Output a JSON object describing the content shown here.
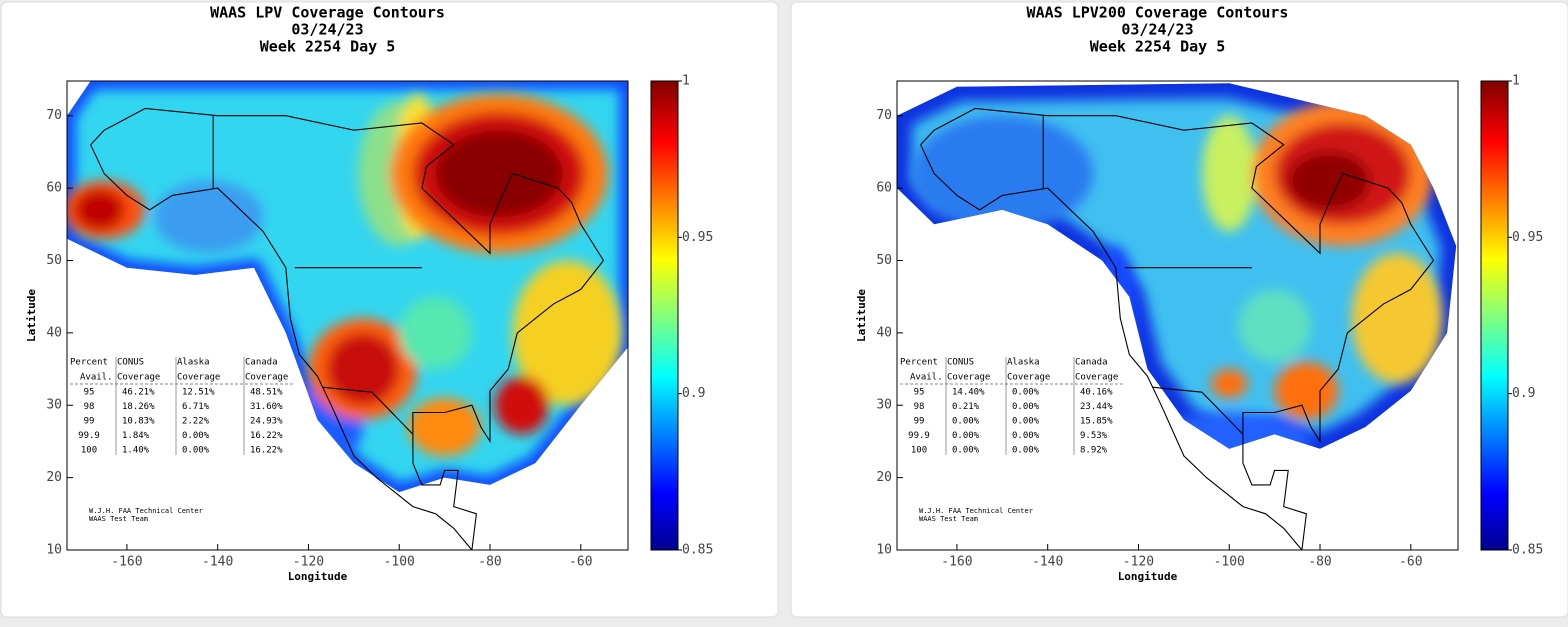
{
  "chart_data": [
    {
      "type": "map",
      "title": "WAAS LPV Coverage Contours",
      "date": "03/24/23",
      "subtitle": "Week 2254 Day 5",
      "xlabel": "Longitude",
      "ylabel": "Latitude",
      "xlim": [
        -173.2,
        -49.6
      ],
      "xticks": [
        -160,
        -140,
        -120,
        -100,
        -80,
        -60
      ],
      "ylim": [
        10,
        74.8
      ],
      "yticks": [
        10,
        20,
        30,
        40,
        50,
        60,
        70
      ],
      "colorbar": {
        "lim": [
          0.85,
          1
        ],
        "ticks": [
          0.85,
          0.9,
          0.95,
          1
        ]
      },
      "table": {
        "header": [
          [
            "Percent",
            "CONUS",
            "Alaska",
            "Canada"
          ],
          [
            "Avail.",
            "Coverage",
            "Coverage",
            "Coverage"
          ]
        ],
        "rows": [
          [
            "95",
            "46.21%",
            "12.51%",
            "48.51%"
          ],
          [
            "98",
            "18.26%",
            "6.71%",
            "31.60%"
          ],
          [
            "99",
            "10.83%",
            "2.22%",
            "24.93%"
          ],
          [
            "99.9",
            "1.84%",
            "0.00%",
            "16.22%"
          ],
          [
            "100",
            "1.40%",
            "0.00%",
            "16.22%"
          ]
        ]
      },
      "credits": [
        "W.J.H. FAA Technical Center",
        "WAAS Test Team"
      ]
    },
    {
      "type": "map",
      "title": "WAAS LPV200 Coverage Contours",
      "date": "03/24/23",
      "subtitle": "Week 2254 Day 5",
      "xlabel": "Longitude",
      "ylabel": "Latitude",
      "xlim": [
        -173.2,
        -49.6
      ],
      "xticks": [
        -160,
        -140,
        -120,
        -100,
        -80,
        -60
      ],
      "ylim": [
        10,
        74.8
      ],
      "yticks": [
        10,
        20,
        30,
        40,
        50,
        60,
        70
      ],
      "colorbar": {
        "lim": [
          0.85,
          1
        ],
        "ticks": [
          0.85,
          0.9,
          0.95,
          1
        ]
      },
      "table": {
        "header": [
          [
            "Percent",
            "CONUS",
            "Alaska",
            "Canada"
          ],
          [
            "Avail.",
            "Coverage",
            "Coverage",
            "Coverage"
          ]
        ],
        "rows": [
          [
            "95",
            "14.40%",
            "0.00%",
            "40.16%"
          ],
          [
            "98",
            "0.21%",
            "0.00%",
            "23.44%"
          ],
          [
            "99",
            "0.00%",
            "0.00%",
            "15.85%"
          ],
          [
            "99.9",
            "0.00%",
            "0.00%",
            "9.53%"
          ],
          [
            "100",
            "0.00%",
            "0.00%",
            "8.92%"
          ]
        ]
      },
      "credits": [
        "W.J.H. FAA Technical Center",
        "WAAS Test Team"
      ]
    }
  ]
}
